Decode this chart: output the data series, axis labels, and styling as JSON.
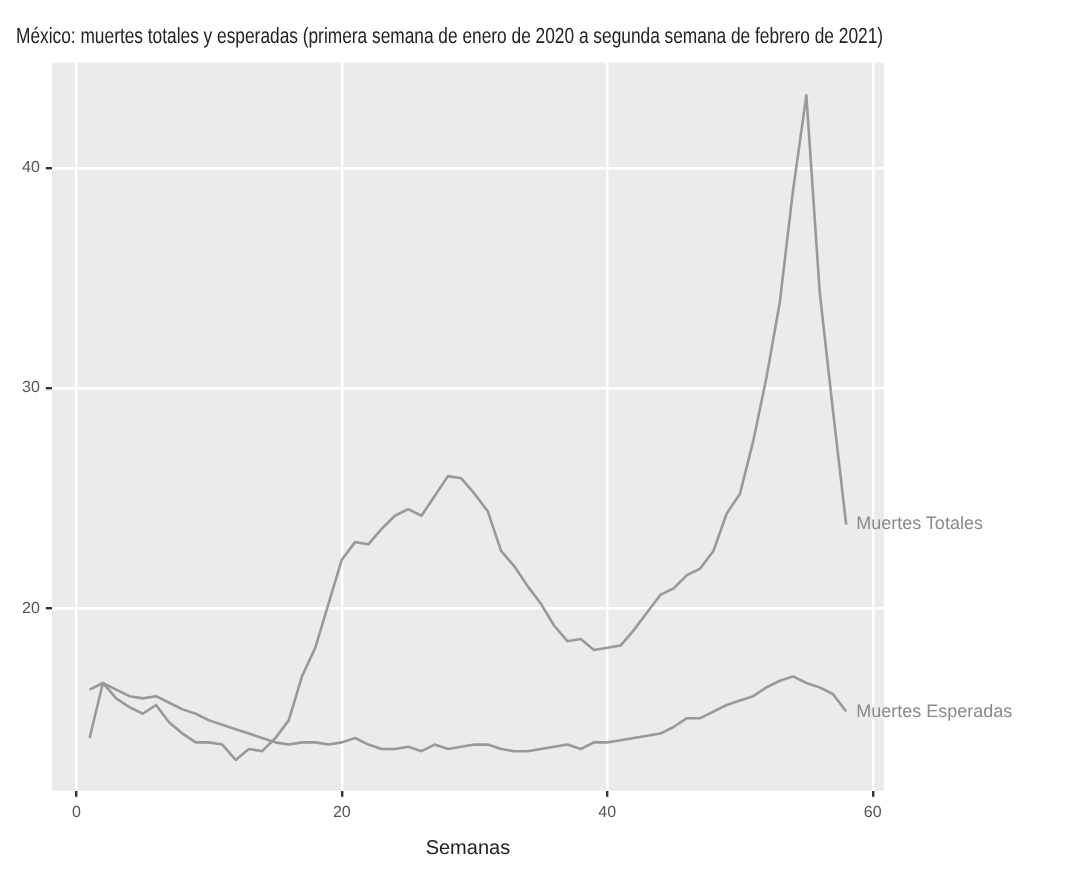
{
  "chart_data": {
    "type": "line",
    "title": "México: muertes totales y esperadas (primera semana de enero de 2020 a segunda semana de febrero de 2021)",
    "xlabel": "Semanas",
    "x": [
      1,
      2,
      3,
      4,
      5,
      6,
      7,
      8,
      9,
      10,
      11,
      12,
      13,
      14,
      15,
      16,
      17,
      18,
      19,
      20,
      21,
      22,
      23,
      24,
      25,
      26,
      27,
      28,
      29,
      30,
      31,
      32,
      33,
      34,
      35,
      36,
      37,
      38,
      39,
      40,
      41,
      42,
      43,
      44,
      45,
      46,
      47,
      48,
      49,
      50,
      51,
      52,
      53,
      54,
      55,
      56,
      57,
      58
    ],
    "series": [
      {
        "name": "Muertes Totales",
        "color": "#999999",
        "values": [
          14.1,
          16.6,
          15.9,
          15.5,
          15.2,
          15.6,
          14.8,
          14.3,
          13.9,
          13.9,
          13.8,
          13.1,
          13.6,
          13.5,
          14.1,
          14.9,
          16.9,
          18.2,
          20.2,
          22.2,
          23.0,
          22.9,
          23.6,
          24.2,
          24.5,
          24.2,
          25.1,
          26.0,
          25.9,
          25.2,
          24.4,
          22.6,
          21.9,
          21.0,
          20.2,
          19.2,
          18.5,
          18.6,
          18.1,
          18.2,
          18.3,
          19.0,
          19.8,
          20.6,
          20.9,
          21.5,
          21.8,
          22.6,
          24.3,
          25.2,
          27.6,
          30.5,
          33.9,
          39.0,
          43.3,
          34.4,
          29.0,
          23.8
        ]
      },
      {
        "name": "Muertes Esperadas",
        "color": "#999999",
        "values": [
          16.3,
          16.6,
          16.3,
          16.0,
          15.9,
          16.0,
          15.7,
          15.4,
          15.2,
          14.9,
          14.7,
          14.5,
          14.3,
          14.1,
          13.9,
          13.8,
          13.9,
          13.9,
          13.8,
          13.9,
          14.1,
          13.8,
          13.6,
          13.6,
          13.7,
          13.5,
          13.8,
          13.6,
          13.7,
          13.8,
          13.8,
          13.6,
          13.5,
          13.5,
          13.6,
          13.7,
          13.8,
          13.6,
          13.9,
          13.9,
          14.0,
          14.1,
          14.2,
          14.3,
          14.6,
          15.0,
          15.0,
          15.3,
          15.6,
          15.8,
          16.0,
          16.4,
          16.7,
          16.9,
          16.6,
          16.4,
          16.1,
          15.3
        ]
      }
    ],
    "xlim": [
      -1.85,
      60.85
    ],
    "ylim": [
      11.7,
      44.8
    ],
    "xticks": [
      0,
      20,
      40,
      60
    ],
    "yticks": [
      20,
      30,
      40
    ],
    "grid": true,
    "legend": false,
    "marker": "none",
    "line_style": "solid"
  }
}
